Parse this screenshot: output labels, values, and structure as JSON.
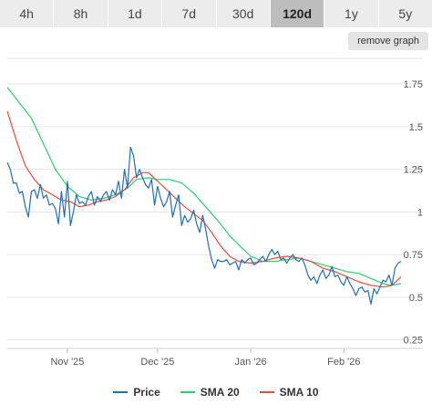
{
  "tabs": [
    {
      "label": "4h"
    },
    {
      "label": "8h"
    },
    {
      "label": "1d"
    },
    {
      "label": "7d"
    },
    {
      "label": "30d"
    },
    {
      "label": "120d",
      "active": true
    },
    {
      "label": "1y"
    },
    {
      "label": "5y"
    }
  ],
  "remove_graph_label": "remove graph",
  "colors": {
    "price": "#1f6fb4",
    "sma20": "#2ecc71",
    "sma10": "#e74c3c",
    "grid": "#e6e6e6"
  },
  "chart_data": {
    "type": "line",
    "title": "",
    "xlabel": "",
    "ylabel": "",
    "ylim": [
      0.2,
      1.9
    ],
    "y_ticks": [
      0.25,
      0.5,
      0.75,
      1,
      1.25,
      1.5,
      1.75
    ],
    "y_tick_labels": [
      "0.25",
      "0.5",
      "0.75",
      "1",
      "1.25",
      "1.5",
      "1.75"
    ],
    "x_range": [
      "2025-10-12",
      "2026-02-20"
    ],
    "x_ticks": [
      {
        "date": "2025-11-01",
        "label": "Nov '25"
      },
      {
        "date": "2025-12-01",
        "label": "Dec '25"
      },
      {
        "date": "2026-01-01",
        "label": "Jan '26"
      },
      {
        "date": "2026-02-01",
        "label": "Feb '26"
      }
    ],
    "grid": true,
    "legend_position": "bottom",
    "series": [
      {
        "name": "Price",
        "key": "price",
        "points": [
          [
            "2025-10-12",
            1.29
          ],
          [
            "2025-10-13",
            1.25
          ],
          [
            "2025-10-14",
            1.17
          ],
          [
            "2025-10-15",
            1.17
          ],
          [
            "2025-10-16",
            1.11
          ],
          [
            "2025-10-17",
            1.12
          ],
          [
            "2025-10-18",
            1.03
          ],
          [
            "2025-10-19",
            0.97
          ],
          [
            "2025-10-20",
            1.12
          ],
          [
            "2025-10-21",
            1.13
          ],
          [
            "2025-10-22",
            1.08
          ],
          [
            "2025-10-23",
            1.16
          ],
          [
            "2025-10-24",
            1.08
          ],
          [
            "2025-10-25",
            1.1
          ],
          [
            "2025-10-26",
            1.04
          ],
          [
            "2025-10-27",
            1.05
          ],
          [
            "2025-10-28",
            1.02
          ],
          [
            "2025-10-29",
            0.93
          ],
          [
            "2025-10-30",
            1.12
          ],
          [
            "2025-10-31",
            0.97
          ],
          [
            "2025-11-01",
            1.18
          ],
          [
            "2025-11-02",
            0.92
          ],
          [
            "2025-11-03",
            1.0
          ],
          [
            "2025-11-04",
            1.1
          ],
          [
            "2025-11-05",
            1.05
          ],
          [
            "2025-11-06",
            1.06
          ],
          [
            "2025-11-07",
            1.04
          ],
          [
            "2025-11-08",
            1.09
          ],
          [
            "2025-11-09",
            1.12
          ],
          [
            "2025-11-10",
            1.04
          ],
          [
            "2025-11-11",
            1.09
          ],
          [
            "2025-11-12",
            1.06
          ],
          [
            "2025-11-13",
            1.1
          ],
          [
            "2025-11-14",
            1.12
          ],
          [
            "2025-11-15",
            1.07
          ],
          [
            "2025-11-16",
            1.13
          ],
          [
            "2025-11-17",
            1.1
          ],
          [
            "2025-11-18",
            1.18
          ],
          [
            "2025-11-19",
            1.08
          ],
          [
            "2025-11-20",
            1.25
          ],
          [
            "2025-11-21",
            1.14
          ],
          [
            "2025-11-22",
            1.38
          ],
          [
            "2025-11-23",
            1.33
          ],
          [
            "2025-11-24",
            1.2
          ],
          [
            "2025-11-25",
            1.25
          ],
          [
            "2025-11-26",
            1.2
          ],
          [
            "2025-11-27",
            1.16
          ],
          [
            "2025-11-28",
            1.14
          ],
          [
            "2025-11-29",
            1.19
          ],
          [
            "2025-11-30",
            1.04
          ],
          [
            "2025-12-01",
            1.15
          ],
          [
            "2025-12-02",
            1.08
          ],
          [
            "2025-12-03",
            1.03
          ],
          [
            "2025-12-04",
            1.06
          ],
          [
            "2025-12-05",
            1.12
          ],
          [
            "2025-12-06",
            0.97
          ],
          [
            "2025-12-07",
            1.04
          ],
          [
            "2025-12-08",
            1.1
          ],
          [
            "2025-12-09",
            0.92
          ],
          [
            "2025-12-10",
            0.98
          ],
          [
            "2025-12-11",
            0.94
          ],
          [
            "2025-12-12",
            0.96
          ],
          [
            "2025-12-13",
            1.01
          ],
          [
            "2025-12-14",
            0.93
          ],
          [
            "2025-12-15",
            0.88
          ],
          [
            "2025-12-16",
            0.98
          ],
          [
            "2025-12-17",
            0.9
          ],
          [
            "2025-12-18",
            0.8
          ],
          [
            "2025-12-19",
            0.72
          ],
          [
            "2025-12-20",
            0.67
          ],
          [
            "2025-12-21",
            0.72
          ],
          [
            "2025-12-22",
            0.71
          ],
          [
            "2025-12-23",
            0.71
          ],
          [
            "2025-12-24",
            0.72
          ],
          [
            "2025-12-25",
            0.69
          ],
          [
            "2025-12-26",
            0.7
          ],
          [
            "2025-12-27",
            0.71
          ],
          [
            "2025-12-28",
            0.66
          ],
          [
            "2025-12-29",
            0.72
          ],
          [
            "2025-12-30",
            0.7
          ],
          [
            "2025-12-31",
            0.72
          ],
          [
            "2026-01-01",
            0.73
          ],
          [
            "2026-01-02",
            0.69
          ],
          [
            "2026-01-03",
            0.7
          ],
          [
            "2026-01-04",
            0.72
          ],
          [
            "2026-01-05",
            0.74
          ],
          [
            "2026-01-06",
            0.71
          ],
          [
            "2026-01-07",
            0.75
          ],
          [
            "2026-01-08",
            0.78
          ],
          [
            "2026-01-09",
            0.75
          ],
          [
            "2026-01-10",
            0.77
          ],
          [
            "2026-01-11",
            0.72
          ],
          [
            "2026-01-12",
            0.73
          ],
          [
            "2026-01-13",
            0.7
          ],
          [
            "2026-01-14",
            0.73
          ],
          [
            "2026-01-15",
            0.75
          ],
          [
            "2026-01-16",
            0.72
          ],
          [
            "2026-01-17",
            0.71
          ],
          [
            "2026-01-18",
            0.73
          ],
          [
            "2026-01-19",
            0.69
          ],
          [
            "2026-01-20",
            0.63
          ],
          [
            "2026-01-21",
            0.6
          ],
          [
            "2026-01-22",
            0.62
          ],
          [
            "2026-01-23",
            0.58
          ],
          [
            "2026-01-24",
            0.63
          ],
          [
            "2026-01-25",
            0.66
          ],
          [
            "2026-01-26",
            0.61
          ],
          [
            "2026-01-27",
            0.63
          ],
          [
            "2026-01-28",
            0.68
          ],
          [
            "2026-01-29",
            0.62
          ],
          [
            "2026-01-30",
            0.63
          ],
          [
            "2026-01-31",
            0.59
          ],
          [
            "2026-02-01",
            0.57
          ],
          [
            "2026-02-02",
            0.62
          ],
          [
            "2026-02-03",
            0.58
          ],
          [
            "2026-02-04",
            0.55
          ],
          [
            "2026-02-05",
            0.51
          ],
          [
            "2026-02-06",
            0.55
          ],
          [
            "2026-02-07",
            0.56
          ],
          [
            "2026-02-08",
            0.53
          ],
          [
            "2026-02-09",
            0.54
          ],
          [
            "2026-02-10",
            0.46
          ],
          [
            "2026-02-11",
            0.55
          ],
          [
            "2026-02-12",
            0.52
          ],
          [
            "2026-02-13",
            0.56
          ],
          [
            "2026-02-14",
            0.6
          ],
          [
            "2026-02-15",
            0.59
          ],
          [
            "2026-02-16",
            0.63
          ],
          [
            "2026-02-17",
            0.57
          ],
          [
            "2026-02-18",
            0.67
          ],
          [
            "2026-02-19",
            0.7
          ],
          [
            "2026-02-20",
            0.71
          ]
        ]
      },
      {
        "name": "SMA 20",
        "key": "sma20",
        "points": [
          [
            "2025-10-12",
            1.73
          ],
          [
            "2025-10-16",
            1.64
          ],
          [
            "2025-10-20",
            1.55
          ],
          [
            "2025-10-24",
            1.4
          ],
          [
            "2025-10-28",
            1.25
          ],
          [
            "2025-11-01",
            1.15
          ],
          [
            "2025-11-05",
            1.09
          ],
          [
            "2025-11-09",
            1.07
          ],
          [
            "2025-11-13",
            1.08
          ],
          [
            "2025-11-17",
            1.1
          ],
          [
            "2025-11-21",
            1.14
          ],
          [
            "2025-11-24",
            1.19
          ],
          [
            "2025-11-28",
            1.2
          ],
          [
            "2025-12-01",
            1.19
          ],
          [
            "2025-12-05",
            1.19
          ],
          [
            "2025-12-09",
            1.17
          ],
          [
            "2025-12-13",
            1.11
          ],
          [
            "2025-12-17",
            1.03
          ],
          [
            "2025-12-21",
            0.95
          ],
          [
            "2025-12-25",
            0.86
          ],
          [
            "2025-12-29",
            0.79
          ],
          [
            "2026-01-01",
            0.74
          ],
          [
            "2026-01-05",
            0.71
          ],
          [
            "2026-01-09",
            0.71
          ],
          [
            "2026-01-13",
            0.72
          ],
          [
            "2026-01-17",
            0.73
          ],
          [
            "2026-01-21",
            0.71
          ],
          [
            "2026-01-25",
            0.69
          ],
          [
            "2026-01-29",
            0.67
          ],
          [
            "2026-02-02",
            0.65
          ],
          [
            "2026-02-06",
            0.64
          ],
          [
            "2026-02-10",
            0.61
          ],
          [
            "2026-02-14",
            0.58
          ],
          [
            "2026-02-17",
            0.57
          ],
          [
            "2026-02-20",
            0.58
          ]
        ]
      },
      {
        "name": "SMA 10",
        "key": "sma10",
        "points": [
          [
            "2025-10-12",
            1.59
          ],
          [
            "2025-10-15",
            1.42
          ],
          [
            "2025-10-18",
            1.27
          ],
          [
            "2025-10-21",
            1.19
          ],
          [
            "2025-10-24",
            1.13
          ],
          [
            "2025-10-27",
            1.1
          ],
          [
            "2025-10-30",
            1.07
          ],
          [
            "2025-11-02",
            1.06
          ],
          [
            "2025-11-05",
            1.03
          ],
          [
            "2025-11-08",
            1.04
          ],
          [
            "2025-11-11",
            1.06
          ],
          [
            "2025-11-14",
            1.07
          ],
          [
            "2025-11-17",
            1.09
          ],
          [
            "2025-11-20",
            1.13
          ],
          [
            "2025-11-23",
            1.2
          ],
          [
            "2025-11-26",
            1.23
          ],
          [
            "2025-11-28",
            1.23
          ],
          [
            "2025-12-01",
            1.18
          ],
          [
            "2025-12-04",
            1.13
          ],
          [
            "2025-12-07",
            1.08
          ],
          [
            "2025-12-10",
            1.03
          ],
          [
            "2025-12-13",
            0.99
          ],
          [
            "2025-12-16",
            0.95
          ],
          [
            "2025-12-19",
            0.88
          ],
          [
            "2025-12-22",
            0.8
          ],
          [
            "2025-12-25",
            0.74
          ],
          [
            "2025-12-28",
            0.71
          ],
          [
            "2026-01-01",
            0.7
          ],
          [
            "2026-01-05",
            0.71
          ],
          [
            "2026-01-09",
            0.73
          ],
          [
            "2026-01-13",
            0.74
          ],
          [
            "2026-01-17",
            0.73
          ],
          [
            "2026-01-21",
            0.71
          ],
          [
            "2026-01-25",
            0.67
          ],
          [
            "2026-01-29",
            0.65
          ],
          [
            "2026-02-02",
            0.62
          ],
          [
            "2026-02-06",
            0.59
          ],
          [
            "2026-02-10",
            0.57
          ],
          [
            "2026-02-14",
            0.56
          ],
          [
            "2026-02-17",
            0.57
          ],
          [
            "2026-02-20",
            0.62
          ]
        ]
      }
    ]
  }
}
